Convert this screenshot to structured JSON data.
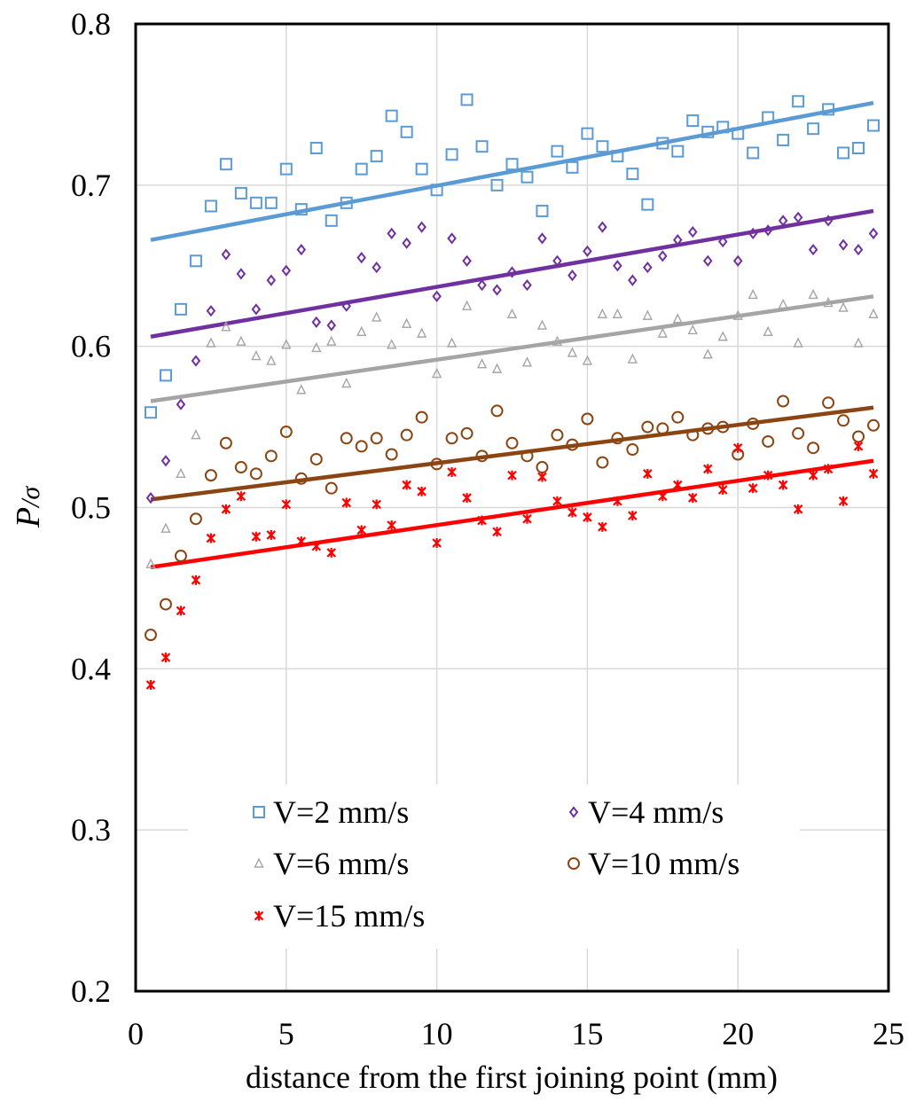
{
  "chart_data": {
    "type": "scatter",
    "title": "",
    "xlabel": "distance from the first joining point (mm)",
    "ylabel_main": "P",
    "ylabel_sub": "/σ",
    "xlim": [
      0,
      25
    ],
    "ylim": [
      0.2,
      0.8
    ],
    "xticks": [
      0,
      5,
      10,
      15,
      20,
      25
    ],
    "yticks": [
      0.2,
      0.3,
      0.4,
      0.5,
      0.6,
      0.7,
      0.8
    ],
    "xtick_labels": [
      "0",
      "5",
      "10",
      "15",
      "20",
      "25"
    ],
    "ytick_labels": [
      "0.2",
      "0.3",
      "0.4",
      "0.5",
      "0.6",
      "0.7",
      "0.8"
    ],
    "grid": true,
    "legend_position": "bottom-center",
    "x": [
      0.5,
      1,
      1.5,
      2,
      2.5,
      3,
      3.5,
      4,
      4.5,
      5,
      5.5,
      6,
      6.5,
      7,
      7.5,
      8,
      8.5,
      9,
      9.5,
      10,
      10.5,
      11,
      11.5,
      12,
      12.5,
      13,
      13.5,
      14,
      14.5,
      15,
      15.5,
      16,
      16.5,
      17,
      17.5,
      18,
      18.5,
      19,
      19.5,
      20,
      20.5,
      21,
      21.5,
      22,
      22.5,
      23,
      23.5,
      24,
      24.5
    ],
    "series": [
      {
        "name": "V=2 mm/s",
        "marker": "square",
        "color": "#5B9BD5",
        "values": [
          0.559,
          0.582,
          0.623,
          0.653,
          0.687,
          0.713,
          0.695,
          0.689,
          0.689,
          0.71,
          0.685,
          0.723,
          0.678,
          0.689,
          0.71,
          0.718,
          0.743,
          0.733,
          0.71,
          0.697,
          0.719,
          0.753,
          0.724,
          0.7,
          0.713,
          0.705,
          0.684,
          0.721,
          0.711,
          0.732,
          0.724,
          0.718,
          0.707,
          0.688,
          0.726,
          0.721,
          0.74,
          0.733,
          0.736,
          0.732,
          0.72,
          0.742,
          0.728,
          0.752,
          0.735,
          0.747,
          0.72,
          0.723,
          0.737
        ],
        "trend": [
          0.666,
          0.751
        ]
      },
      {
        "name": "V=4 mm/s",
        "marker": "diamond",
        "color": "#7030A0",
        "values": [
          0.506,
          0.529,
          0.564,
          0.591,
          0.622,
          0.657,
          0.645,
          0.623,
          0.641,
          0.647,
          0.66,
          0.615,
          0.613,
          0.625,
          0.655,
          0.649,
          0.67,
          0.664,
          0.674,
          0.631,
          0.667,
          0.653,
          0.638,
          0.635,
          0.646,
          0.638,
          0.667,
          0.653,
          0.644,
          0.659,
          0.674,
          0.65,
          0.641,
          0.649,
          0.656,
          0.666,
          0.671,
          0.653,
          0.665,
          0.653,
          0.67,
          0.672,
          0.678,
          0.68,
          0.66,
          0.678,
          0.663,
          0.66,
          0.67
        ],
        "trend": [
          0.606,
          0.684
        ]
      },
      {
        "name": "V=6 mm/s",
        "marker": "triangle",
        "color": "#A5A5A5",
        "values": [
          0.465,
          0.487,
          0.521,
          0.545,
          0.602,
          0.612,
          0.603,
          0.594,
          0.591,
          0.601,
          0.573,
          0.599,
          0.603,
          0.577,
          0.609,
          0.618,
          0.601,
          0.614,
          0.608,
          0.583,
          0.602,
          0.625,
          0.589,
          0.586,
          0.62,
          0.59,
          0.613,
          0.603,
          0.596,
          0.591,
          0.62,
          0.62,
          0.592,
          0.619,
          0.608,
          0.617,
          0.61,
          0.595,
          0.606,
          0.619,
          0.632,
          0.609,
          0.626,
          0.602,
          0.632,
          0.627,
          0.624,
          0.602,
          0.62
        ],
        "trend": [
          0.566,
          0.631
        ]
      },
      {
        "name": "V=10 mm/s",
        "marker": "circle",
        "color": "#8B4513",
        "values": [
          0.421,
          0.44,
          0.47,
          0.493,
          0.52,
          0.54,
          0.525,
          0.521,
          0.532,
          0.547,
          0.518,
          0.53,
          0.512,
          0.543,
          0.538,
          0.543,
          0.533,
          0.545,
          0.556,
          0.527,
          0.543,
          0.546,
          0.532,
          0.56,
          0.54,
          0.532,
          0.525,
          0.545,
          0.539,
          0.555,
          0.528,
          0.543,
          0.536,
          0.55,
          0.549,
          0.556,
          0.545,
          0.549,
          0.55,
          0.533,
          0.552,
          0.541,
          0.566,
          0.546,
          0.537,
          0.565,
          0.554,
          0.544,
          0.551
        ],
        "trend": [
          0.505,
          0.562
        ]
      },
      {
        "name": "V=15 mm/s",
        "marker": "asterisk",
        "color": "#FF0000",
        "values": [
          0.39,
          0.407,
          0.436,
          0.455,
          0.481,
          0.499,
          0.507,
          0.482,
          0.483,
          0.502,
          0.479,
          0.476,
          0.472,
          0.503,
          0.486,
          0.502,
          0.489,
          0.514,
          0.51,
          0.478,
          0.522,
          0.506,
          0.492,
          0.485,
          0.52,
          0.493,
          0.519,
          0.504,
          0.497,
          0.494,
          0.488,
          0.504,
          0.495,
          0.521,
          0.507,
          0.514,
          0.506,
          0.524,
          0.511,
          0.537,
          0.512,
          0.52,
          0.514,
          0.499,
          0.52,
          0.524,
          0.504,
          0.538,
          0.521
        ],
        "trend": [
          0.463,
          0.529
        ]
      }
    ]
  }
}
